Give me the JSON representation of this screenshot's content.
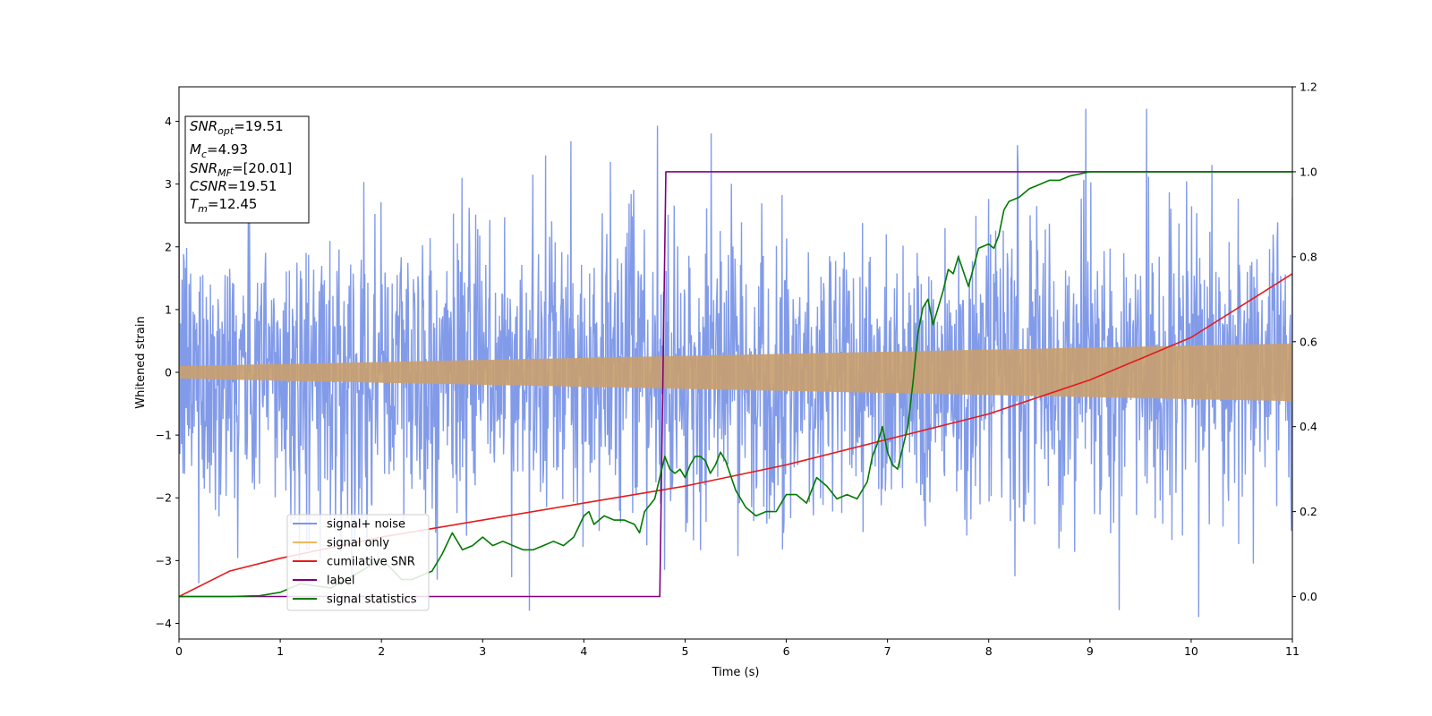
{
  "chart_data": {
    "type": "line",
    "xlabel": "Time (s)",
    "ylabel": "Whitened strain",
    "xlim": [
      0,
      11
    ],
    "ylim": [
      -4.25,
      4.55
    ],
    "y2lim": [
      -0.1,
      1.2
    ],
    "x_ticks": [
      "0",
      "1",
      "2",
      "3",
      "4",
      "5",
      "6",
      "7",
      "8",
      "9",
      "10",
      "11"
    ],
    "y_ticks": [
      "−4",
      "−3",
      "−2",
      "−1",
      "0",
      "1",
      "2",
      "3",
      "4"
    ],
    "y2_ticks": [
      "0.0",
      "0.2",
      "0.4",
      "0.6",
      "0.8",
      "1.0",
      "1.2"
    ],
    "legend_position": "lower-left",
    "info_box": {
      "position": "top-left",
      "lines": [
        {
          "main": "SNR",
          "sub": "opt",
          "value": "=19.51"
        },
        {
          "main": "M",
          "sub": "c",
          "value": "=4.93"
        },
        {
          "main": "SNR",
          "sub": "MF",
          "value": "=[20.01]"
        },
        {
          "main": "CSNR",
          "sub": "",
          "value": "=19.51"
        },
        {
          "main": "T",
          "sub": "m",
          "value": "=12.45"
        }
      ]
    },
    "series": [
      {
        "name": "signal+ noise",
        "axis": "left",
        "color": "#7b96e8",
        "note": "white-noise band, amplitude ~±2.5 with spikes to ~±4"
      },
      {
        "name": "signal only",
        "axis": "left",
        "color": "#f0b860",
        "amplitude_x": [
          0,
          11
        ],
        "amplitude_y": [
          0.1,
          0.46
        ]
      },
      {
        "name": "cumilative SNR",
        "axis": "right",
        "color": "#e41a1c",
        "x": [
          0,
          0.5,
          1,
          2,
          3,
          4,
          5,
          6,
          7,
          8,
          9,
          10,
          11
        ],
        "y": [
          0.0,
          0.06,
          0.09,
          0.14,
          0.18,
          0.22,
          0.26,
          0.31,
          0.37,
          0.43,
          0.51,
          0.61,
          0.76
        ]
      },
      {
        "name": "label",
        "axis": "right",
        "color": "#800080",
        "x": [
          0,
          4.75,
          4.81,
          11
        ],
        "y": [
          0,
          0,
          1,
          1
        ]
      },
      {
        "name": "signal statistics",
        "axis": "right",
        "color": "#007a00",
        "x": [
          0,
          0.5,
          0.8,
          1.0,
          1.2,
          1.5,
          1.8,
          2.0,
          2.2,
          2.3,
          2.5,
          2.6,
          2.7,
          2.8,
          2.9,
          3.0,
          3.1,
          3.2,
          3.3,
          3.4,
          3.5,
          3.6,
          3.7,
          3.8,
          3.9,
          4.0,
          4.05,
          4.1,
          4.2,
          4.3,
          4.4,
          4.5,
          4.55,
          4.6,
          4.7,
          4.75,
          4.8,
          4.85,
          4.9,
          4.95,
          5.0,
          5.05,
          5.1,
          5.15,
          5.2,
          5.25,
          5.3,
          5.35,
          5.4,
          5.5,
          5.6,
          5.7,
          5.8,
          5.9,
          6.0,
          6.1,
          6.2,
          6.3,
          6.4,
          6.5,
          6.6,
          6.7,
          6.8,
          6.85,
          6.9,
          6.95,
          7.0,
          7.05,
          7.1,
          7.15,
          7.2,
          7.25,
          7.3,
          7.35,
          7.4,
          7.45,
          7.5,
          7.55,
          7.6,
          7.65,
          7.7,
          7.8,
          7.9,
          8.0,
          8.05,
          8.1,
          8.15,
          8.2,
          8.3,
          8.4,
          8.5,
          8.6,
          8.7,
          8.8,
          8.9,
          9.0,
          9.2,
          9.5,
          10.0,
          11.0
        ],
        "y": [
          0.0,
          0.0,
          0.002,
          0.01,
          0.03,
          0.02,
          0.06,
          0.09,
          0.04,
          0.04,
          0.06,
          0.1,
          0.15,
          0.11,
          0.12,
          0.14,
          0.12,
          0.13,
          0.12,
          0.11,
          0.11,
          0.12,
          0.13,
          0.12,
          0.14,
          0.19,
          0.2,
          0.17,
          0.19,
          0.18,
          0.18,
          0.17,
          0.15,
          0.2,
          0.23,
          0.28,
          0.33,
          0.3,
          0.29,
          0.3,
          0.28,
          0.31,
          0.33,
          0.33,
          0.32,
          0.29,
          0.31,
          0.34,
          0.32,
          0.25,
          0.21,
          0.19,
          0.2,
          0.2,
          0.24,
          0.24,
          0.22,
          0.28,
          0.26,
          0.23,
          0.24,
          0.23,
          0.27,
          0.33,
          0.36,
          0.4,
          0.34,
          0.31,
          0.3,
          0.35,
          0.4,
          0.5,
          0.62,
          0.68,
          0.7,
          0.64,
          0.68,
          0.72,
          0.77,
          0.76,
          0.8,
          0.73,
          0.82,
          0.83,
          0.82,
          0.85,
          0.91,
          0.93,
          0.94,
          0.96,
          0.97,
          0.98,
          0.98,
          0.99,
          0.995,
          1.0,
          1.0,
          1.0,
          1.0,
          1.0
        ]
      }
    ]
  }
}
